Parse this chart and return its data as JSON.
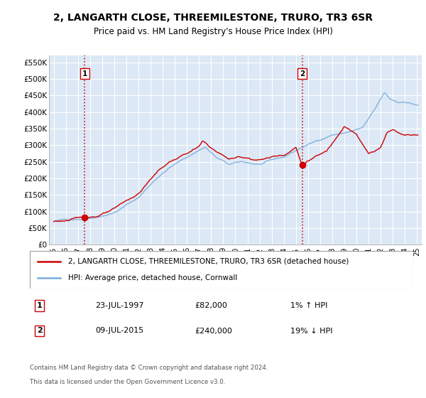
{
  "title": "2, LANGARTH CLOSE, THREEMILESTONE, TRURO, TR3 6SR",
  "subtitle": "Price paid vs. HM Land Registry's House Price Index (HPI)",
  "bg_color": "#dce8f5",
  "plot_bg_color": "#dce8f5",
  "grid_color": "#ffffff",
  "sale1": {
    "date": "23-JUL-1997",
    "price": 82000,
    "year": 1997.55,
    "label": "1",
    "pct": "1%",
    "dir": "↑"
  },
  "sale2": {
    "date": "09-JUL-2015",
    "price": 240000,
    "year": 2015.52,
    "label": "2",
    "pct": "19%",
    "dir": "↓"
  },
  "hpi_color": "#7aabdb",
  "price_color": "#cc0000",
  "dashed_color": "#cc0000",
  "legend_label_price": "2, LANGARTH CLOSE, THREEMILESTONE, TRURO, TR3 6SR (detached house)",
  "legend_label_hpi": "HPI: Average price, detached house, Cornwall",
  "footer1": "Contains HM Land Registry data © Crown copyright and database right 2024.",
  "footer2": "This data is licensed under the Open Government Licence v3.0.",
  "ylim": [
    0,
    570000
  ],
  "yticks": [
    0,
    50000,
    100000,
    150000,
    200000,
    250000,
    300000,
    350000,
    400000,
    450000,
    500000,
    550000
  ],
  "ytick_labels": [
    "£0",
    "£50K",
    "£100K",
    "£150K",
    "£200K",
    "£250K",
    "£300K",
    "£350K",
    "£400K",
    "£450K",
    "£500K",
    "£550K"
  ],
  "xlim": [
    1994.6,
    2025.4
  ],
  "xticks": [
    1995,
    1996,
    1997,
    1998,
    1999,
    2000,
    2001,
    2002,
    2003,
    2004,
    2005,
    2006,
    2007,
    2008,
    2009,
    2010,
    2011,
    2012,
    2013,
    2014,
    2015,
    2016,
    2017,
    2018,
    2019,
    2020,
    2021,
    2022,
    2023,
    2024,
    2025
  ],
  "xtick_labels": [
    "95",
    "96",
    "97",
    "98",
    "99",
    "00",
    "01",
    "02",
    "03",
    "04",
    "05",
    "06",
    "07",
    "08",
    "09",
    "10",
    "11",
    "12",
    "13",
    "14",
    "15",
    "16",
    "17",
    "18",
    "19",
    "20",
    "21",
    "22",
    "23",
    "24",
    "25"
  ]
}
